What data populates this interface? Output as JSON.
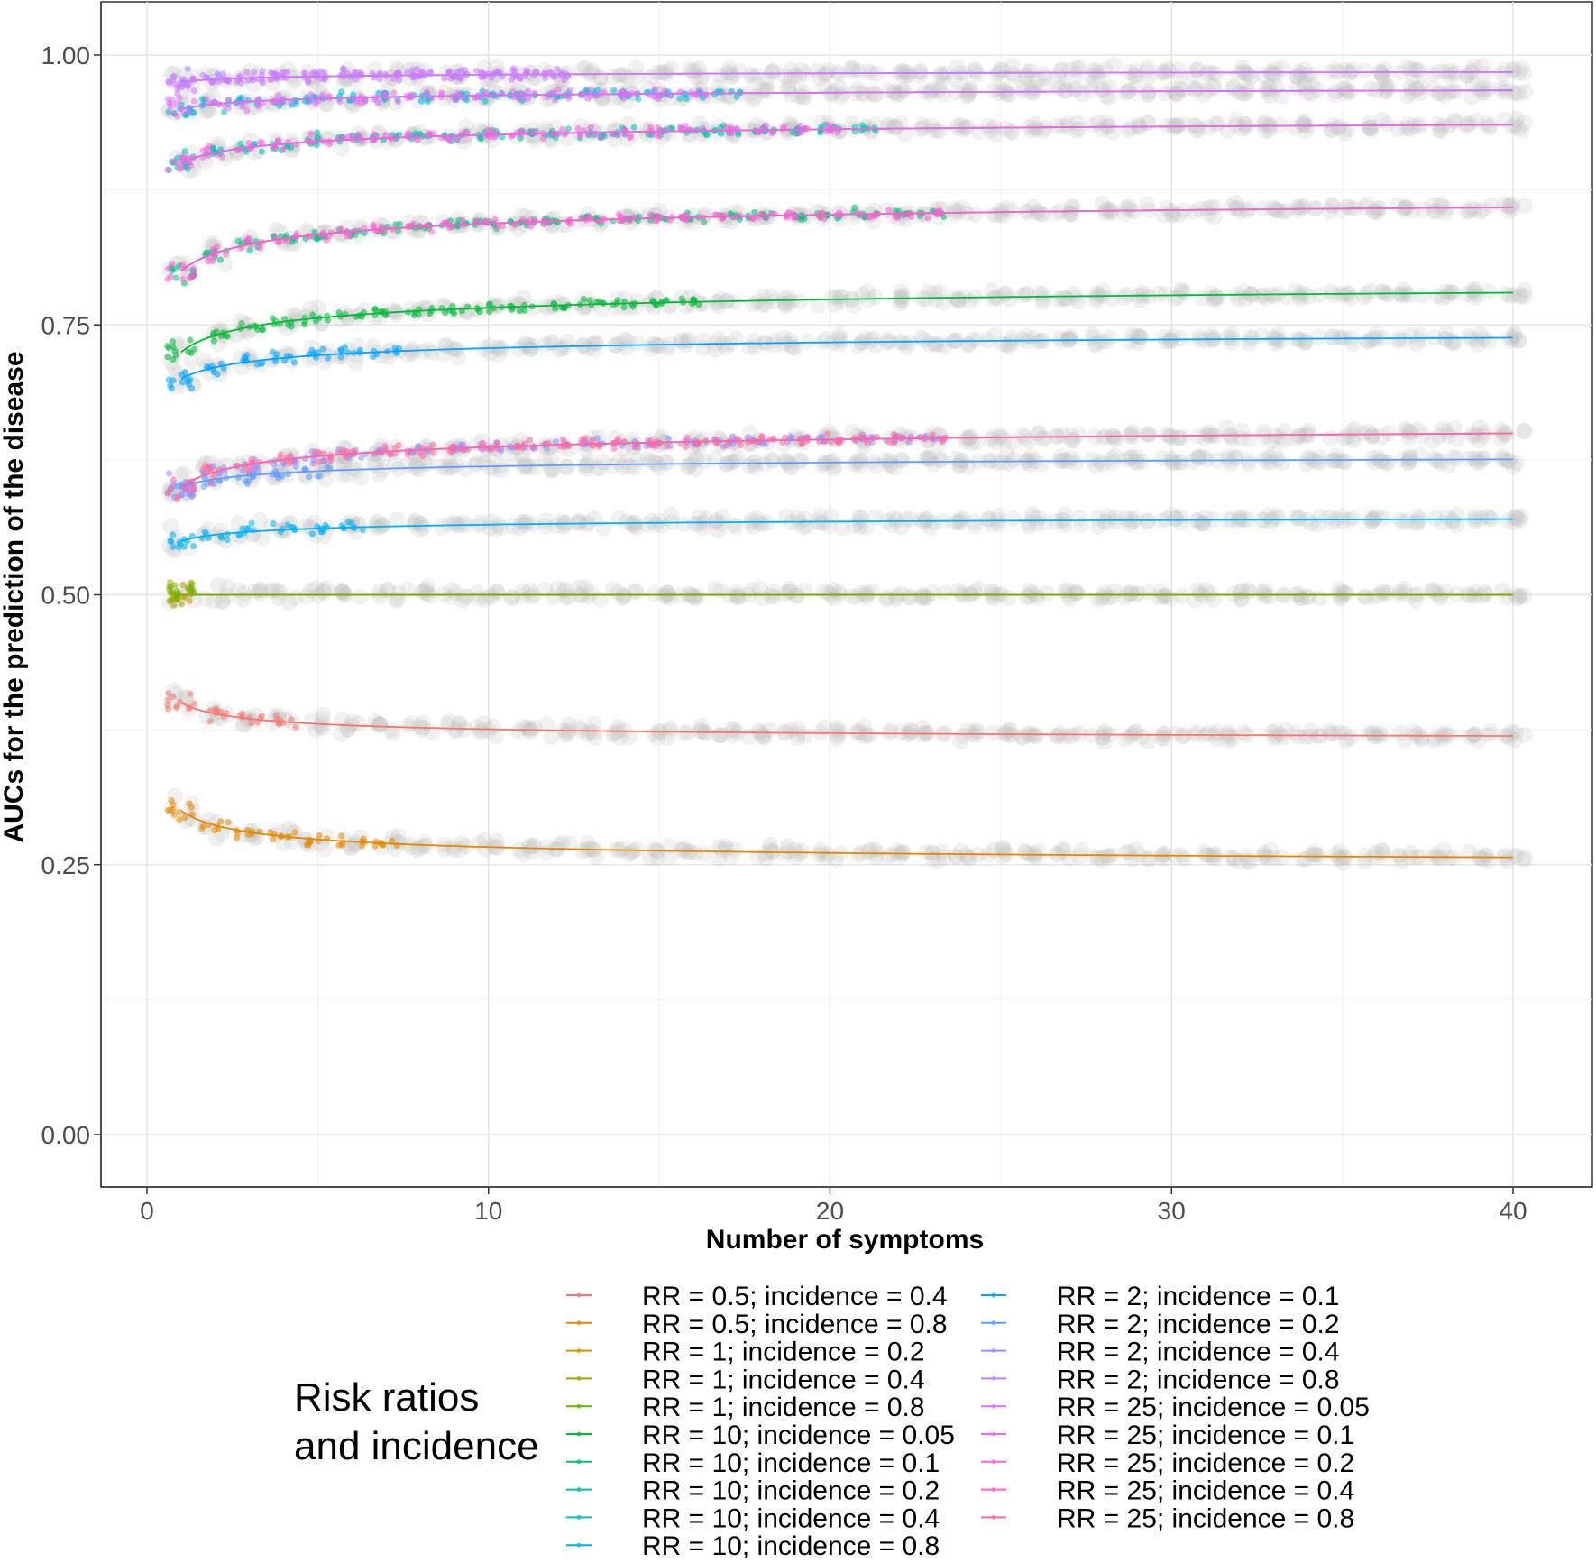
{
  "chart_data": {
    "type": "scatter",
    "xlabel": "Number of symptoms",
    "ylabel": "AUCs for the prediction of the disease",
    "xlim": [
      0,
      40
    ],
    "ylim": [
      0,
      1
    ],
    "x_ticks": [
      {
        "value": 0,
        "label": "0"
      },
      {
        "value": 10,
        "label": "10"
      },
      {
        "value": 20,
        "label": "20"
      },
      {
        "value": 30,
        "label": "30"
      },
      {
        "value": 40,
        "label": "40"
      }
    ],
    "y_ticks": [
      {
        "value": 0,
        "label": "0.00"
      },
      {
        "value": 0.25,
        "label": "0.25"
      },
      {
        "value": 0.5,
        "label": "0.50"
      },
      {
        "value": 0.75,
        "label": "0.75"
      },
      {
        "value": 1,
        "label": "1.00"
      }
    ],
    "grid": true,
    "legend_title_lines": [
      "Risk ratios",
      "and incidence"
    ],
    "legend_position": "bottom",
    "gray_color": "#bebebe",
    "series": [
      {
        "name": "RR = 0.5; incidence = 0.4",
        "color": "#F8766D",
        "start": 0.4,
        "end": 0.362,
        "k": 0.45,
        "colored_until": 4
      },
      {
        "name": "RR = 0.5; incidence = 0.8",
        "color": "#E58700",
        "start": 0.3,
        "end": 0.244,
        "k": 0.4,
        "colored_until": 7
      },
      {
        "name": "RR = 1; incidence = 0.2",
        "color": "#C99800",
        "start": 0.5,
        "end": 0.5,
        "k": 0.5,
        "colored_until": 1
      },
      {
        "name": "RR = 1; incidence = 0.4",
        "color": "#A3A500",
        "start": 0.5,
        "end": 0.5,
        "k": 0.5,
        "colored_until": 1
      },
      {
        "name": "RR = 1; incidence = 0.8",
        "color": "#6BB100",
        "start": 0.5,
        "end": 0.5,
        "k": 0.5,
        "colored_until": 1
      },
      {
        "name": "RR = 10; incidence = 0.05",
        "color": "#00BA38",
        "start": 0.725,
        "end": 0.807,
        "k": 0.3,
        "colored_until": 16
      },
      {
        "name": "RR = 10; incidence = 0.1",
        "color": "#00BF7D",
        "start": 0.8,
        "end": 0.888,
        "k": 0.3,
        "colored_until": 23
      },
      {
        "name": "RR = 10; incidence = 0.2",
        "color": "#00C0AF",
        "start": 0.9,
        "end": 0.955,
        "k": 0.28,
        "colored_until": 21
      },
      {
        "name": "RR = 10; incidence = 0.4",
        "color": "#00BCD8",
        "start": 0.95,
        "end": 0.978,
        "k": 0.26,
        "colored_until": 17
      },
      {
        "name": "RR = 10; incidence = 0.8",
        "color": "#00B0F6",
        "start": 0.55,
        "end": 0.58,
        "k": 0.3,
        "colored_until": 6
      },
      {
        "name": "RR = 2; incidence = 0.1",
        "color": "#00A5FF",
        "start": 0.7,
        "end": 0.757,
        "k": 0.3,
        "colored_until": 7
      },
      {
        "name": "RR = 2; incidence = 0.2",
        "color": "#619CFF",
        "start": 0.6,
        "end": 0.638,
        "k": 0.3,
        "colored_until": 5
      },
      {
        "name": "RR = 2; incidence = 0.4",
        "color": "#9590FF",
        "start": 0.6,
        "end": 0.674,
        "k": 0.3,
        "colored_until": 23
      },
      {
        "name": "RR = 2; incidence = 0.8",
        "color": "#B983FF",
        "start": 0.975,
        "end": 0.99,
        "k": 0.26,
        "colored_until": 12
      },
      {
        "name": "RR = 25; incidence = 0.05",
        "color": "#D376FF",
        "start": 0.975,
        "end": 0.99,
        "k": 0.26,
        "colored_until": 12
      },
      {
        "name": "RR = 25; incidence = 0.1",
        "color": "#E76BF3",
        "start": 0.95,
        "end": 0.978,
        "k": 0.26,
        "colored_until": 16
      },
      {
        "name": "RR = 25; incidence = 0.2",
        "color": "#F564E3",
        "start": 0.9,
        "end": 0.955,
        "k": 0.28,
        "colored_until": 20
      },
      {
        "name": "RR = 25; incidence = 0.4",
        "color": "#FD61D1",
        "start": 0.8,
        "end": 0.888,
        "k": 0.3,
        "colored_until": 23
      },
      {
        "name": "RR = 25; incidence = 0.8",
        "color": "#FF67A4",
        "start": 0.6,
        "end": 0.674,
        "k": 0.3,
        "colored_until": 23
      }
    ]
  }
}
